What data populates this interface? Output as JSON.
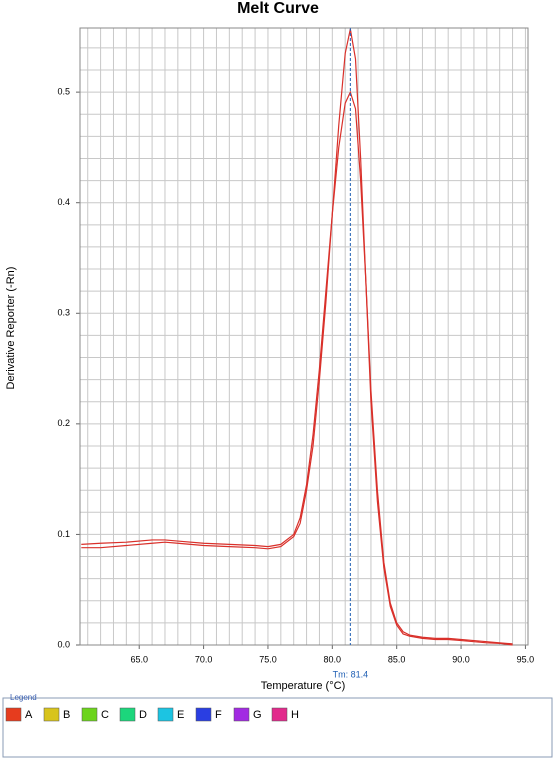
{
  "chart_data": {
    "type": "line",
    "title": "Melt Curve",
    "x_label": "Temperature (°C)",
    "y_label": "Derivative Reporter (-Rn)",
    "x": [
      60.5,
      62,
      64,
      66,
      67,
      68,
      70,
      72,
      74,
      75,
      76,
      77,
      77.5,
      78,
      78.5,
      79,
      79.5,
      80,
      80.5,
      81,
      81.4,
      81.8,
      82.2,
      82.6,
      83,
      83.5,
      84,
      84.5,
      85,
      85.5,
      86,
      87,
      88,
      89,
      90,
      91,
      92,
      93,
      94
    ],
    "series": [
      {
        "color": "#d9302a",
        "values": [
          0.088,
          0.088,
          0.09,
          0.092,
          0.093,
          0.092,
          0.09,
          0.089,
          0.088,
          0.087,
          0.089,
          0.098,
          0.11,
          0.14,
          0.18,
          0.24,
          0.31,
          0.39,
          0.47,
          0.535,
          0.557,
          0.53,
          0.44,
          0.33,
          0.22,
          0.13,
          0.07,
          0.035,
          0.018,
          0.01,
          0.008,
          0.006,
          0.005,
          0.005,
          0.004,
          0.003,
          0.002,
          0.0015,
          0.0
        ]
      },
      {
        "color": "#d9302a",
        "values": [
          0.091,
          0.092,
          0.093,
          0.095,
          0.095,
          0.094,
          0.092,
          0.091,
          0.09,
          0.089,
          0.091,
          0.1,
          0.115,
          0.145,
          0.19,
          0.25,
          0.32,
          0.39,
          0.45,
          0.49,
          0.5,
          0.485,
          0.42,
          0.33,
          0.23,
          0.14,
          0.075,
          0.038,
          0.02,
          0.012,
          0.009,
          0.007,
          0.006,
          0.006,
          0.005,
          0.004,
          0.003,
          0.002,
          0.001
        ]
      }
    ],
    "xlim": [
      60.4,
      95.2
    ],
    "ylim": [
      0,
      0.558
    ],
    "xticks": [
      {
        "value": 65,
        "label": "65.0"
      },
      {
        "value": 70,
        "label": "70.0"
      },
      {
        "value": 75,
        "label": "75.0"
      },
      {
        "value": 80,
        "label": "80.0"
      },
      {
        "value": 85,
        "label": "85.0"
      },
      {
        "value": 90,
        "label": "90.0"
      },
      {
        "value": 95,
        "label": "95.0"
      }
    ],
    "yticks": [
      {
        "value": 0,
        "label": "0.0"
      },
      0.1,
      0.2,
      0.3,
      0.4,
      0.5
    ],
    "grid": true,
    "minor_grid": {
      "x": 1,
      "y": 0.02
    },
    "annotation": {
      "label": "Tm: 81.4",
      "x": 81.4,
      "color": "#1f5fb4"
    },
    "legend_panel": {
      "title": "Legend",
      "items": [
        {
          "label": "A",
          "color": "#e63c1e"
        },
        {
          "label": "B",
          "color": "#d8c41c"
        },
        {
          "label": "C",
          "color": "#6cd41c"
        },
        {
          "label": "D",
          "color": "#1cd67c"
        },
        {
          "label": "E",
          "color": "#1cc4e2"
        },
        {
          "label": "F",
          "color": "#2a3ee2"
        },
        {
          "label": "G",
          "color": "#a22ae2"
        },
        {
          "label": "H",
          "color": "#e22a8c"
        }
      ]
    }
  }
}
